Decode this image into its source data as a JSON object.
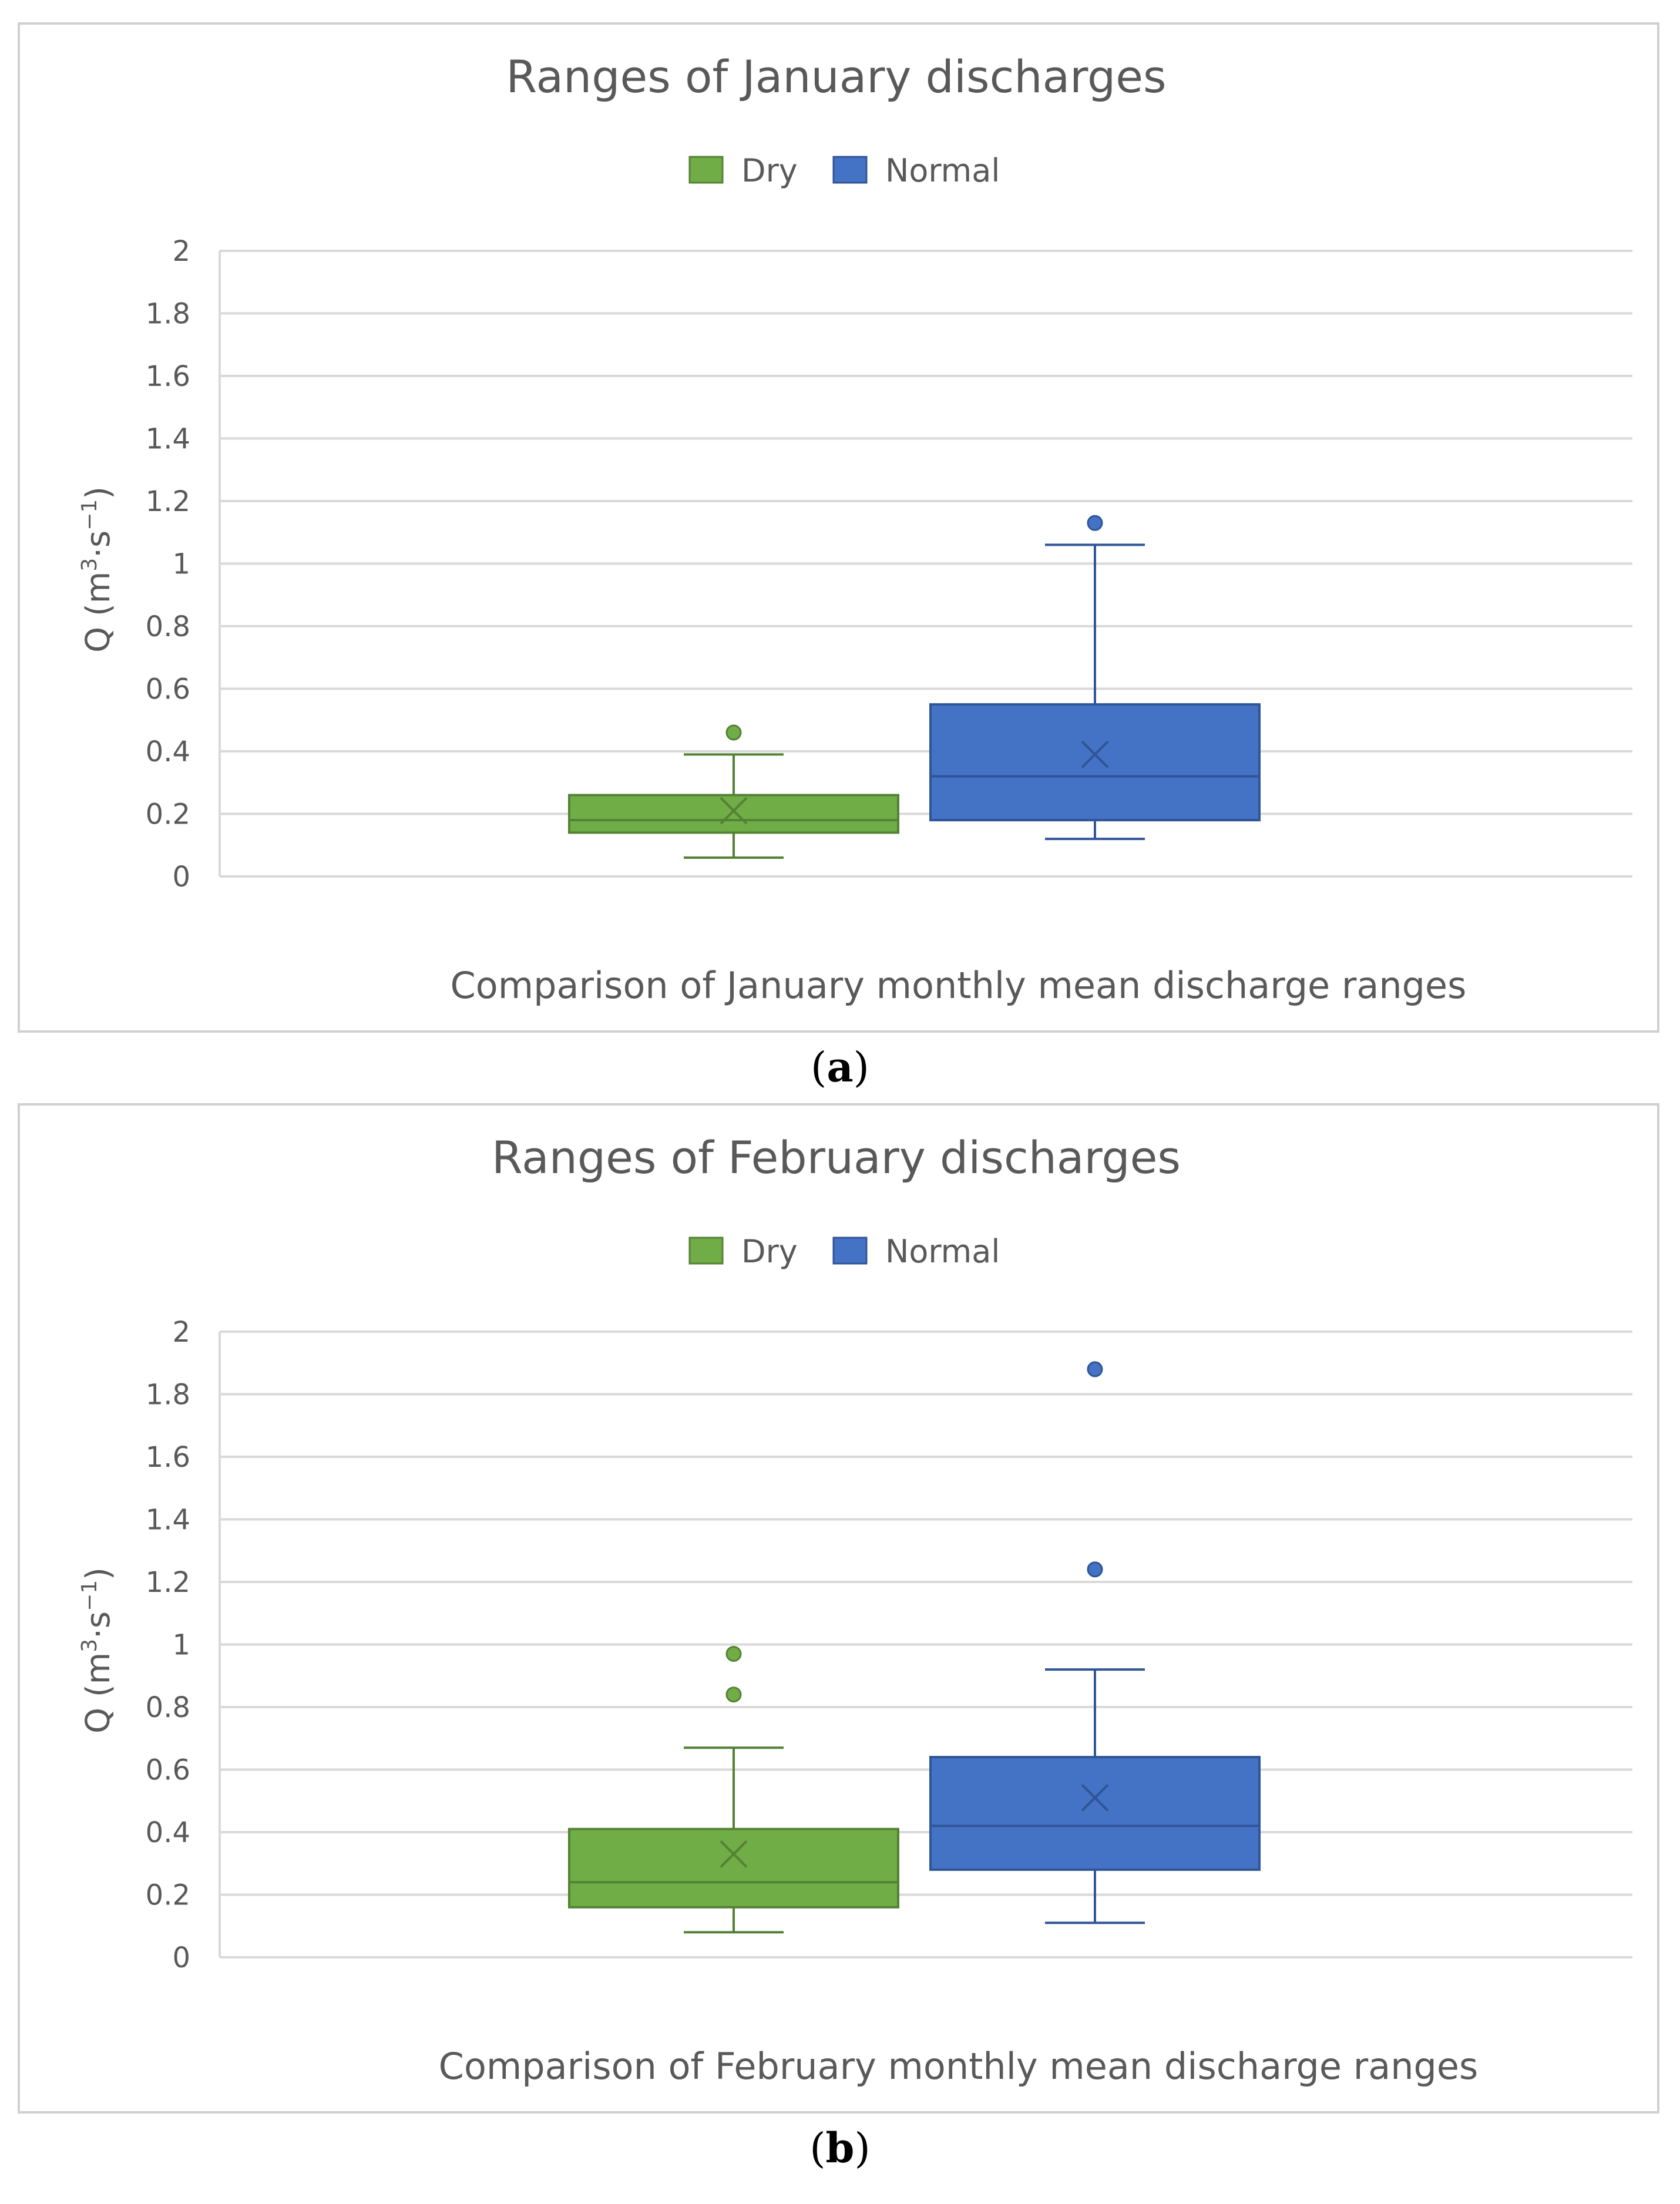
{
  "chart_data": [
    {
      "type": "box",
      "title": "Ranges of January discharges",
      "xlabel": "Comparison of January monthly mean discharge ranges",
      "ylabel_main": "Q (m",
      "ylabel_sup1": "3",
      "ylabel_mid": "·s",
      "ylabel_sup2": "−1",
      "ylabel_end": ")",
      "ylim": [
        0,
        2
      ],
      "yticks": [
        "0",
        "0.2",
        "0.4",
        "0.6",
        "0.8",
        "1",
        "1.2",
        "1.4",
        "1.6",
        "1.8",
        "2"
      ],
      "legend": [
        "Dry",
        "Normal"
      ],
      "series": [
        {
          "name": "Dry",
          "color": "#70ad47",
          "edge": "#548235",
          "min": 0.06,
          "q1": 0.14,
          "median": 0.18,
          "q3": 0.26,
          "max": 0.39,
          "mean": 0.21,
          "outliers": [
            0.46
          ]
        },
        {
          "name": "Normal",
          "color": "#4472c4",
          "edge": "#2f5597",
          "min": 0.12,
          "q1": 0.18,
          "median": 0.32,
          "q3": 0.55,
          "max": 1.06,
          "mean": 0.39,
          "outliers": [
            1.13
          ]
        }
      ]
    },
    {
      "type": "box",
      "title": "Ranges of February discharges",
      "xlabel": "Comparison of February monthly mean discharge ranges",
      "ylabel_main": "Q (m",
      "ylabel_sup1": "3",
      "ylabel_mid": "·s",
      "ylabel_sup2": "−1",
      "ylabel_end": ")",
      "ylim": [
        0,
        2
      ],
      "yticks": [
        "0",
        "0.2",
        "0.4",
        "0.6",
        "0.8",
        "1",
        "1.2",
        "1.4",
        "1.6",
        "1.8",
        "2"
      ],
      "legend": [
        "Dry",
        "Normal"
      ],
      "series": [
        {
          "name": "Dry",
          "color": "#70ad47",
          "edge": "#548235",
          "min": 0.08,
          "q1": 0.16,
          "median": 0.24,
          "q3": 0.41,
          "max": 0.67,
          "mean": 0.33,
          "outliers": [
            0.84,
            0.97
          ]
        },
        {
          "name": "Normal",
          "color": "#4472c4",
          "edge": "#2f5597",
          "min": 0.11,
          "q1": 0.28,
          "median": 0.42,
          "q3": 0.64,
          "max": 0.92,
          "mean": 0.51,
          "outliers": [
            1.24,
            1.88
          ]
        }
      ]
    }
  ],
  "captions": {
    "a_open": "(",
    "a_letter": "a",
    "a_close": ")",
    "b_open": "(",
    "b_letter": "b",
    "b_close": ")"
  }
}
